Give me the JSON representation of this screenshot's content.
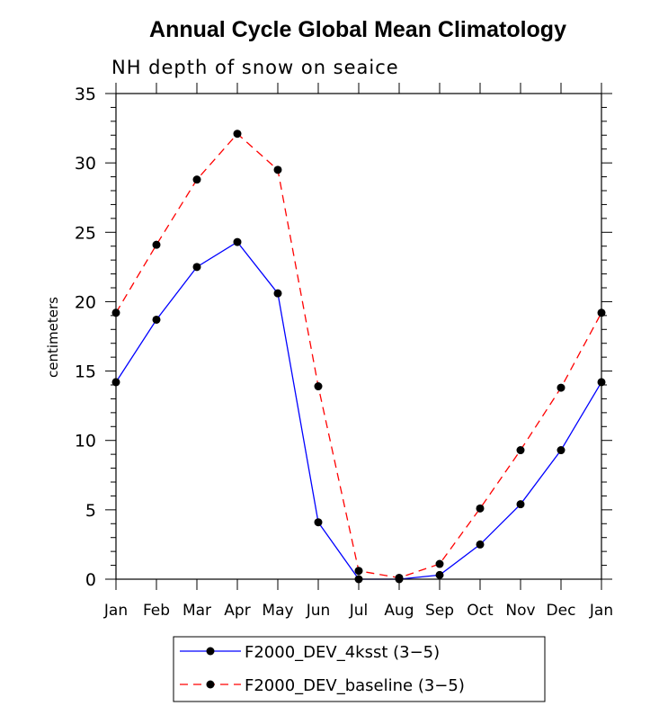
{
  "chart_data": {
    "type": "line",
    "title": "Annual Cycle Global Mean Climatology",
    "subtitle": "NH depth of snow on seaice",
    "xlabel": "",
    "ylabel": "centimeters",
    "ylim": [
      0,
      35
    ],
    "yticks": [
      0,
      5,
      10,
      15,
      20,
      25,
      30,
      35
    ],
    "categories": [
      "Jan",
      "Feb",
      "Mar",
      "Apr",
      "May",
      "Jun",
      "Jul",
      "Aug",
      "Sep",
      "Oct",
      "Nov",
      "Dec",
      "Jan"
    ],
    "series": [
      {
        "name": "F2000_DEV_4ksst (3-5)",
        "color": "#0000ff",
        "dash": "solid",
        "values": [
          14.2,
          18.7,
          22.5,
          24.3,
          20.6,
          4.1,
          0.0,
          0.0,
          0.3,
          2.5,
          5.4,
          9.3,
          14.2
        ]
      },
      {
        "name": "F2000_DEV_baseline (3-5)",
        "color": "#ff0000",
        "dash": "dashed",
        "values": [
          19.2,
          24.1,
          28.8,
          32.1,
          29.5,
          13.9,
          0.6,
          0.1,
          1.1,
          5.1,
          9.3,
          13.8,
          19.2
        ]
      }
    ],
    "legend": {
      "position": "bottom-center",
      "entries": [
        "F2000_DEV_4ksst (3−5)",
        "F2000_DEV_baseline (3−5)"
      ]
    }
  }
}
